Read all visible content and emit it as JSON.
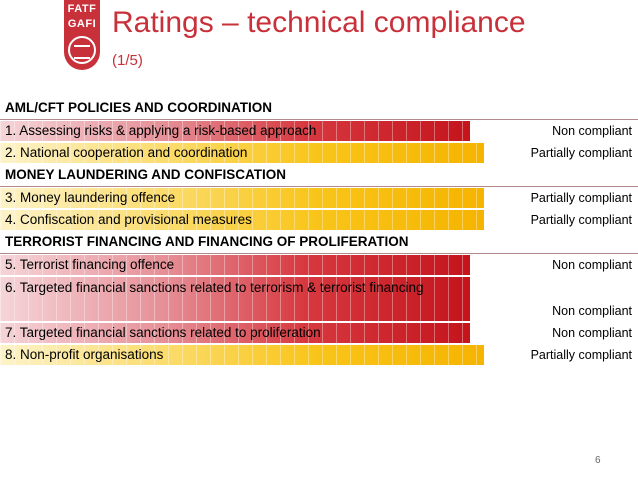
{
  "logo": {
    "line1": "FATF",
    "line2": "GAFI"
  },
  "slide": {
    "title": "Ratings – technical compliance",
    "subtitle": "(1/5)",
    "page_number": "6"
  },
  "colors": {
    "accent": "#c8303a",
    "non_compliant": "#c4141c",
    "partially_compliant": "#f5b400"
  },
  "sections": [
    {
      "title": "AML/CFT POLICIES AND COORDINATION",
      "items": [
        {
          "label": "1. Assessing risks & applying a risk-based approach",
          "rating": "Non compliant",
          "level": "non_compliant"
        },
        {
          "label": "2. National cooperation and coordination",
          "rating": "Partially compliant",
          "level": "partially_compliant"
        }
      ]
    },
    {
      "title": "MONEY LAUNDERING AND CONFISCATION",
      "items": [
        {
          "label": "3. Money laundering offence",
          "rating": "Partially compliant",
          "level": "partially_compliant"
        },
        {
          "label": "4. Confiscation and provisional measures",
          "rating": "Partially compliant",
          "level": "partially_compliant"
        }
      ]
    },
    {
      "title": "TERRORIST FINANCING AND FINANCING OF PROLIFERATION",
      "items": [
        {
          "label": "5. Terrorist financing offence",
          "rating": "Non compliant",
          "level": "non_compliant"
        },
        {
          "label": "6. Targeted financial sanctions related to terrorism & terrorist financing",
          "rating": "Non compliant",
          "level": "non_compliant"
        },
        {
          "label": "7. Targeted financial sanctions related to proliferation",
          "rating": "Non compliant",
          "level": "non_compliant"
        },
        {
          "label": "8. Non-profit organisations",
          "rating": "Partially compliant",
          "level": "partially_compliant"
        }
      ]
    }
  ]
}
